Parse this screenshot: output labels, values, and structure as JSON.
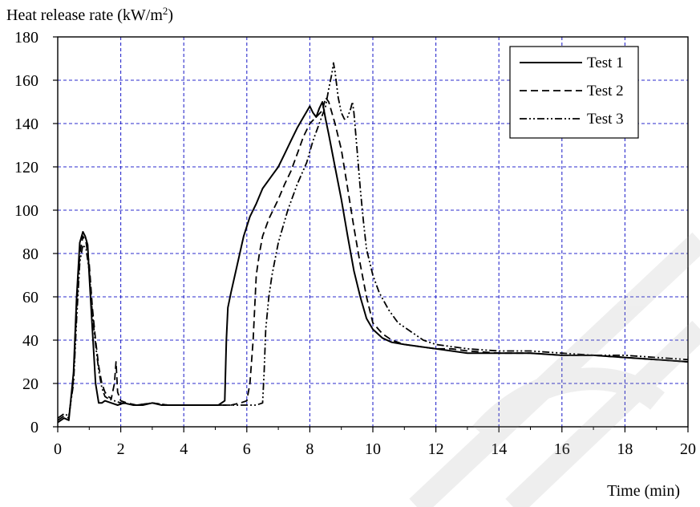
{
  "chart_data": {
    "type": "line",
    "ylabel": "Heat release rate (kW/m²)",
    "xlabel": "Time (min)",
    "xlim": [
      0,
      20
    ],
    "ylim": [
      0,
      180
    ],
    "x_ticks": [
      "0",
      "2",
      "4",
      "6",
      "8",
      "10",
      "12",
      "14",
      "16",
      "18",
      "20"
    ],
    "y_ticks": [
      "0",
      "20",
      "40",
      "60",
      "80",
      "100",
      "120",
      "140",
      "160",
      "180"
    ],
    "grid": true,
    "grid_color": "#2b2bcc",
    "legend_position": "top-right",
    "series": [
      {
        "name": "Test 1",
        "style": "solid",
        "x": [
          0,
          0.2,
          0.35,
          0.5,
          0.6,
          0.7,
          0.8,
          0.87,
          0.95,
          1.0,
          1.1,
          1.2,
          1.3,
          1.4,
          1.5,
          1.7,
          1.9,
          2.1,
          2.4,
          2.7,
          3.0,
          3.3,
          3.6,
          4.0,
          4.4,
          4.8,
          5.1,
          5.3,
          5.35,
          5.4,
          5.5,
          5.7,
          5.9,
          6.1,
          6.3,
          6.5,
          6.8,
          7.0,
          7.2,
          7.4,
          7.6,
          7.8,
          8.0,
          8.1,
          8.2,
          8.3,
          8.4,
          8.5,
          8.6,
          8.8,
          9.0,
          9.2,
          9.4,
          9.6,
          9.8,
          10.0,
          10.3,
          10.6,
          11.0,
          11.5,
          12.0,
          12.5,
          13.0,
          14.0,
          15.0,
          16.0,
          17.0,
          18.0,
          19.0,
          20.0
        ],
        "y": [
          2,
          4,
          3,
          25,
          60,
          85,
          90,
          88,
          84,
          70,
          45,
          20,
          11,
          11,
          12,
          11,
          10,
          11,
          10,
          10,
          11,
          10,
          10,
          10,
          10,
          10,
          10,
          12,
          40,
          55,
          62,
          75,
          88,
          97,
          103,
          110,
          116,
          120,
          126,
          132,
          138,
          143,
          148,
          145,
          143,
          147,
          150,
          142,
          135,
          120,
          105,
          88,
          72,
          60,
          50,
          45,
          41,
          39,
          38,
          37,
          36,
          35,
          34,
          34,
          34,
          33,
          33,
          32,
          31,
          30
        ]
      },
      {
        "name": "Test 2",
        "style": "dashed",
        "x": [
          0,
          0.2,
          0.35,
          0.5,
          0.6,
          0.7,
          0.8,
          0.9,
          1.0,
          1.1,
          1.2,
          1.3,
          1.4,
          1.5,
          1.6,
          1.7,
          1.8,
          1.85,
          1.9,
          2.0,
          2.2,
          2.5,
          3.0,
          3.5,
          4.0,
          4.5,
          5.0,
          5.5,
          5.8,
          6.0,
          6.1,
          6.2,
          6.3,
          6.4,
          6.5,
          6.7,
          7.0,
          7.2,
          7.4,
          7.6,
          7.8,
          8.0,
          8.2,
          8.4,
          8.5,
          8.6,
          8.8,
          9.0,
          9.2,
          9.4,
          9.6,
          9.8,
          10.0,
          10.3,
          10.6,
          11.0,
          11.5,
          12.0,
          12.5,
          13.0,
          14.0,
          15.0,
          16.0,
          17.0,
          18.0,
          19.0,
          20.0
        ],
        "y": [
          3,
          5,
          4,
          22,
          55,
          80,
          88,
          85,
          75,
          55,
          40,
          28,
          20,
          16,
          14,
          13,
          20,
          30,
          16,
          12,
          11,
          10,
          11,
          10,
          10,
          10,
          10,
          10,
          11,
          12,
          20,
          40,
          70,
          80,
          88,
          96,
          105,
          112,
          118,
          126,
          134,
          140,
          143,
          146,
          152,
          150,
          140,
          128,
          110,
          92,
          75,
          60,
          48,
          43,
          40,
          38,
          37,
          36,
          36,
          35,
          34,
          34,
          33,
          33,
          32,
          31,
          30
        ]
      },
      {
        "name": "Test 3",
        "style": "dashdotdot",
        "x": [
          0,
          0.2,
          0.35,
          0.5,
          0.6,
          0.7,
          0.8,
          0.9,
          1.0,
          1.1,
          1.2,
          1.3,
          1.4,
          1.5,
          1.6,
          1.8,
          2.0,
          2.5,
          3.0,
          3.5,
          4.0,
          4.5,
          5.0,
          5.5,
          6.0,
          6.3,
          6.5,
          6.55,
          6.6,
          6.7,
          6.8,
          7.0,
          7.3,
          7.6,
          7.9,
          8.1,
          8.3,
          8.5,
          8.6,
          8.7,
          8.75,
          8.8,
          8.9,
          9.0,
          9.1,
          9.2,
          9.3,
          9.35,
          9.4,
          9.5,
          9.6,
          9.7,
          9.8,
          10.0,
          10.2,
          10.5,
          10.8,
          11.2,
          11.6,
          12.0,
          12.5,
          13.0,
          14.0,
          15.0,
          16.0,
          17.0,
          18.0,
          19.0,
          20.0
        ],
        "y": [
          4,
          6,
          5,
          20,
          50,
          76,
          84,
          82,
          72,
          52,
          38,
          26,
          18,
          14,
          13,
          12,
          11,
          10,
          11,
          10,
          10,
          10,
          10,
          10,
          10,
          10,
          11,
          25,
          45,
          60,
          70,
          85,
          100,
          112,
          122,
          132,
          140,
          148,
          156,
          163,
          168,
          164,
          152,
          145,
          142,
          143,
          147,
          150,
          145,
          128,
          110,
          95,
          82,
          70,
          62,
          54,
          48,
          44,
          40,
          38,
          37,
          36,
          35,
          35,
          34,
          33,
          33,
          32,
          31
        ]
      }
    ]
  }
}
